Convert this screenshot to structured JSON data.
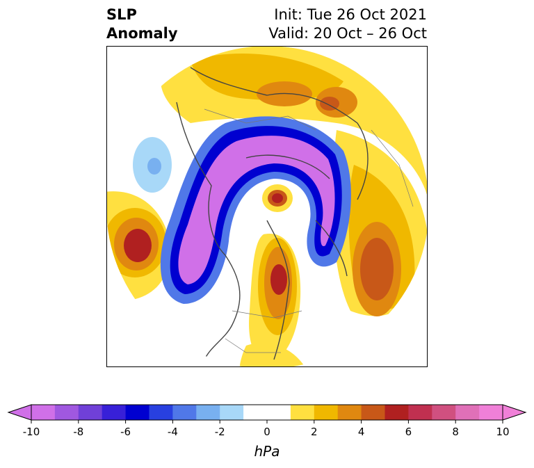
{
  "title": {
    "line1_left": "SLP",
    "line2_left": "Anomaly",
    "line1_right": "Init: Tue 26 Oct 2021",
    "line2_right": "Valid: 20 Oct – 26 Oct"
  },
  "colorbar": {
    "unit_label": "hPa",
    "ticks": [
      "-10",
      "-8",
      "-6",
      "-4",
      "-2",
      "0",
      "2",
      "4",
      "6",
      "8",
      "10"
    ],
    "colors": [
      "#d070e8",
      "#a058e0",
      "#7040d8",
      "#3820d8",
      "#0000d0",
      "#2840e0",
      "#5078e8",
      "#78b0f0",
      "#a8d8f8",
      "#ffffff",
      "#ffffff",
      "#ffe040",
      "#f0b800",
      "#e08810",
      "#c85818",
      "#b02020",
      "#c03050",
      "#d05080",
      "#e070b8",
      "#f080d8"
    ],
    "lower_extend_color": "#d070e8",
    "upper_extend_color": "#f080d8"
  }
}
